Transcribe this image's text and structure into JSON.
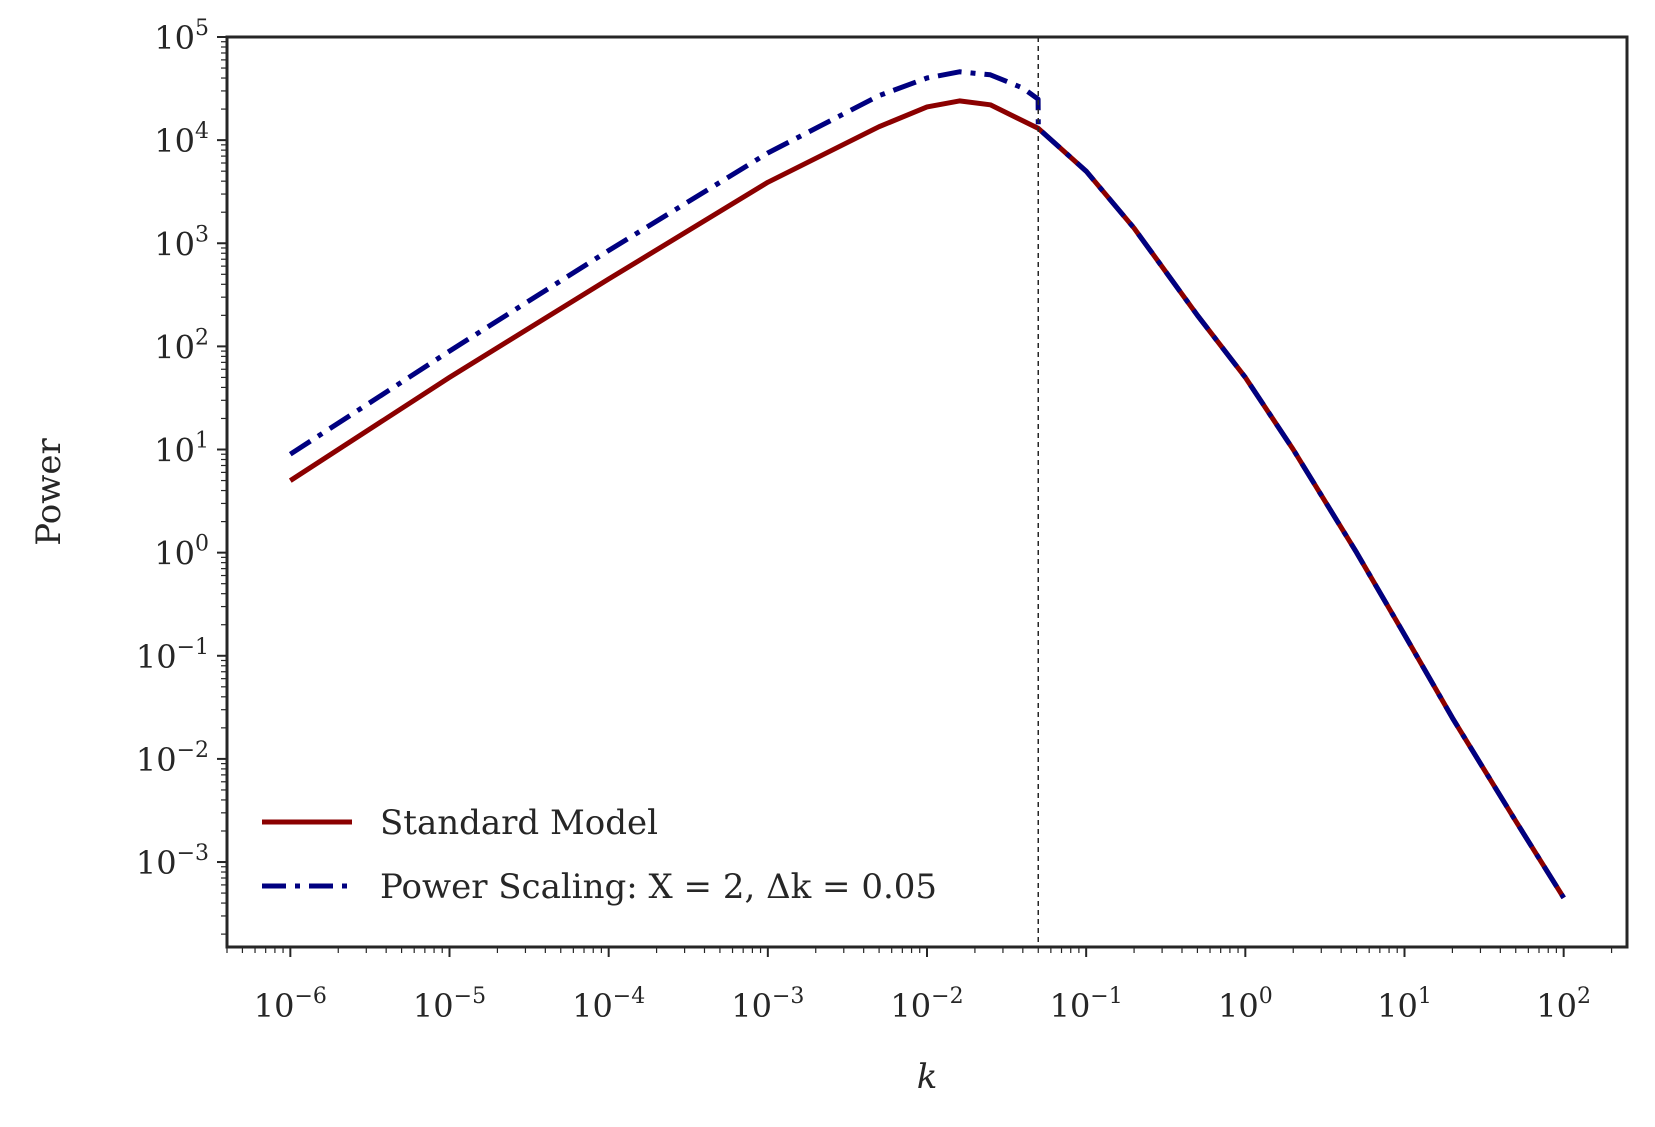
{
  "chart_data": {
    "type": "line",
    "xlabel": "k",
    "ylabel": "Power",
    "xscale": "log",
    "yscale": "log",
    "xlim": [
      4e-07,
      250
    ],
    "ylim": [
      0.00015,
      100000
    ],
    "grid": false,
    "legend_position": "lower-left",
    "x_ticks": [
      {
        "base": "10",
        "exp": "−6"
      },
      {
        "base": "10",
        "exp": "−5"
      },
      {
        "base": "10",
        "exp": "−4"
      },
      {
        "base": "10",
        "exp": "−3"
      },
      {
        "base": "10",
        "exp": "−2"
      },
      {
        "base": "10",
        "exp": "−1"
      },
      {
        "base": "10",
        "exp": "0"
      },
      {
        "base": "10",
        "exp": "1"
      },
      {
        "base": "10",
        "exp": "2"
      }
    ],
    "y_ticks": [
      {
        "base": "10",
        "exp": "−3"
      },
      {
        "base": "10",
        "exp": "−2"
      },
      {
        "base": "10",
        "exp": "−1"
      },
      {
        "base": "10",
        "exp": "0"
      },
      {
        "base": "10",
        "exp": "1"
      },
      {
        "base": "10",
        "exp": "2"
      },
      {
        "base": "10",
        "exp": "3"
      },
      {
        "base": "10",
        "exp": "4"
      },
      {
        "base": "10",
        "exp": "5"
      }
    ],
    "vline": {
      "x": 0.05,
      "style": "dashed",
      "color": "#262626"
    },
    "series": [
      {
        "name": "Standard Model",
        "color": "#8b0000",
        "style": "solid",
        "x": [
          1e-06,
          1e-05,
          0.0001,
          0.001,
          0.005,
          0.01,
          0.016,
          0.025,
          0.05,
          0.1,
          0.2,
          0.5,
          1,
          2,
          5,
          10,
          20,
          50,
          100
        ],
        "y": [
          5,
          50,
          450,
          3900,
          13500,
          21000,
          24000,
          22000,
          13000,
          5000,
          1400,
          200,
          50,
          10,
          1,
          0.16,
          0.025,
          0.0025,
          0.00045
        ]
      },
      {
        "name": "Power Scaling: X = 2, Δk = 0.05",
        "color": "#000080",
        "style": "dashdot",
        "x": [
          1e-06,
          1e-05,
          0.0001,
          0.001,
          0.005,
          0.01,
          0.016,
          0.025,
          0.04,
          0.0499,
          0.05,
          0.1,
          0.2,
          0.5,
          1,
          2,
          5,
          10,
          20,
          50,
          100
        ],
        "y": [
          9,
          90,
          850,
          7500,
          27000,
          40000,
          46000,
          43000,
          32000,
          25000,
          13000,
          5000,
          1400,
          200,
          50,
          10,
          1,
          0.16,
          0.025,
          0.0025,
          0.00045
        ]
      }
    ]
  }
}
